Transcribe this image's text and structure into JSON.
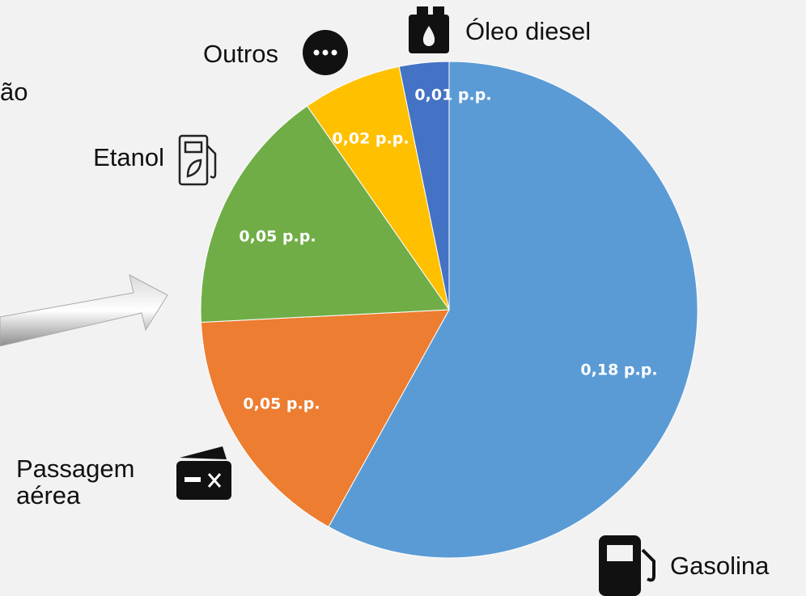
{
  "chart_data": {
    "type": "pie",
    "annotation": "ão",
    "categories": [
      "Gasolina",
      "Passagem aérea",
      "Etanol",
      "Outros",
      "Óleo diesel"
    ],
    "values": [
      0.18,
      0.05,
      0.05,
      0.02,
      0.01
    ],
    "value_labels": [
      "0,18 p.p.",
      "0,05 p.p.",
      "0,05 p.p.",
      "0,02 p.p.",
      "0,01 p.p."
    ],
    "colors": [
      "#5b9bd5",
      "#ed7d31",
      "#70ad47",
      "#ffc000",
      "#4472c4"
    ]
  }
}
